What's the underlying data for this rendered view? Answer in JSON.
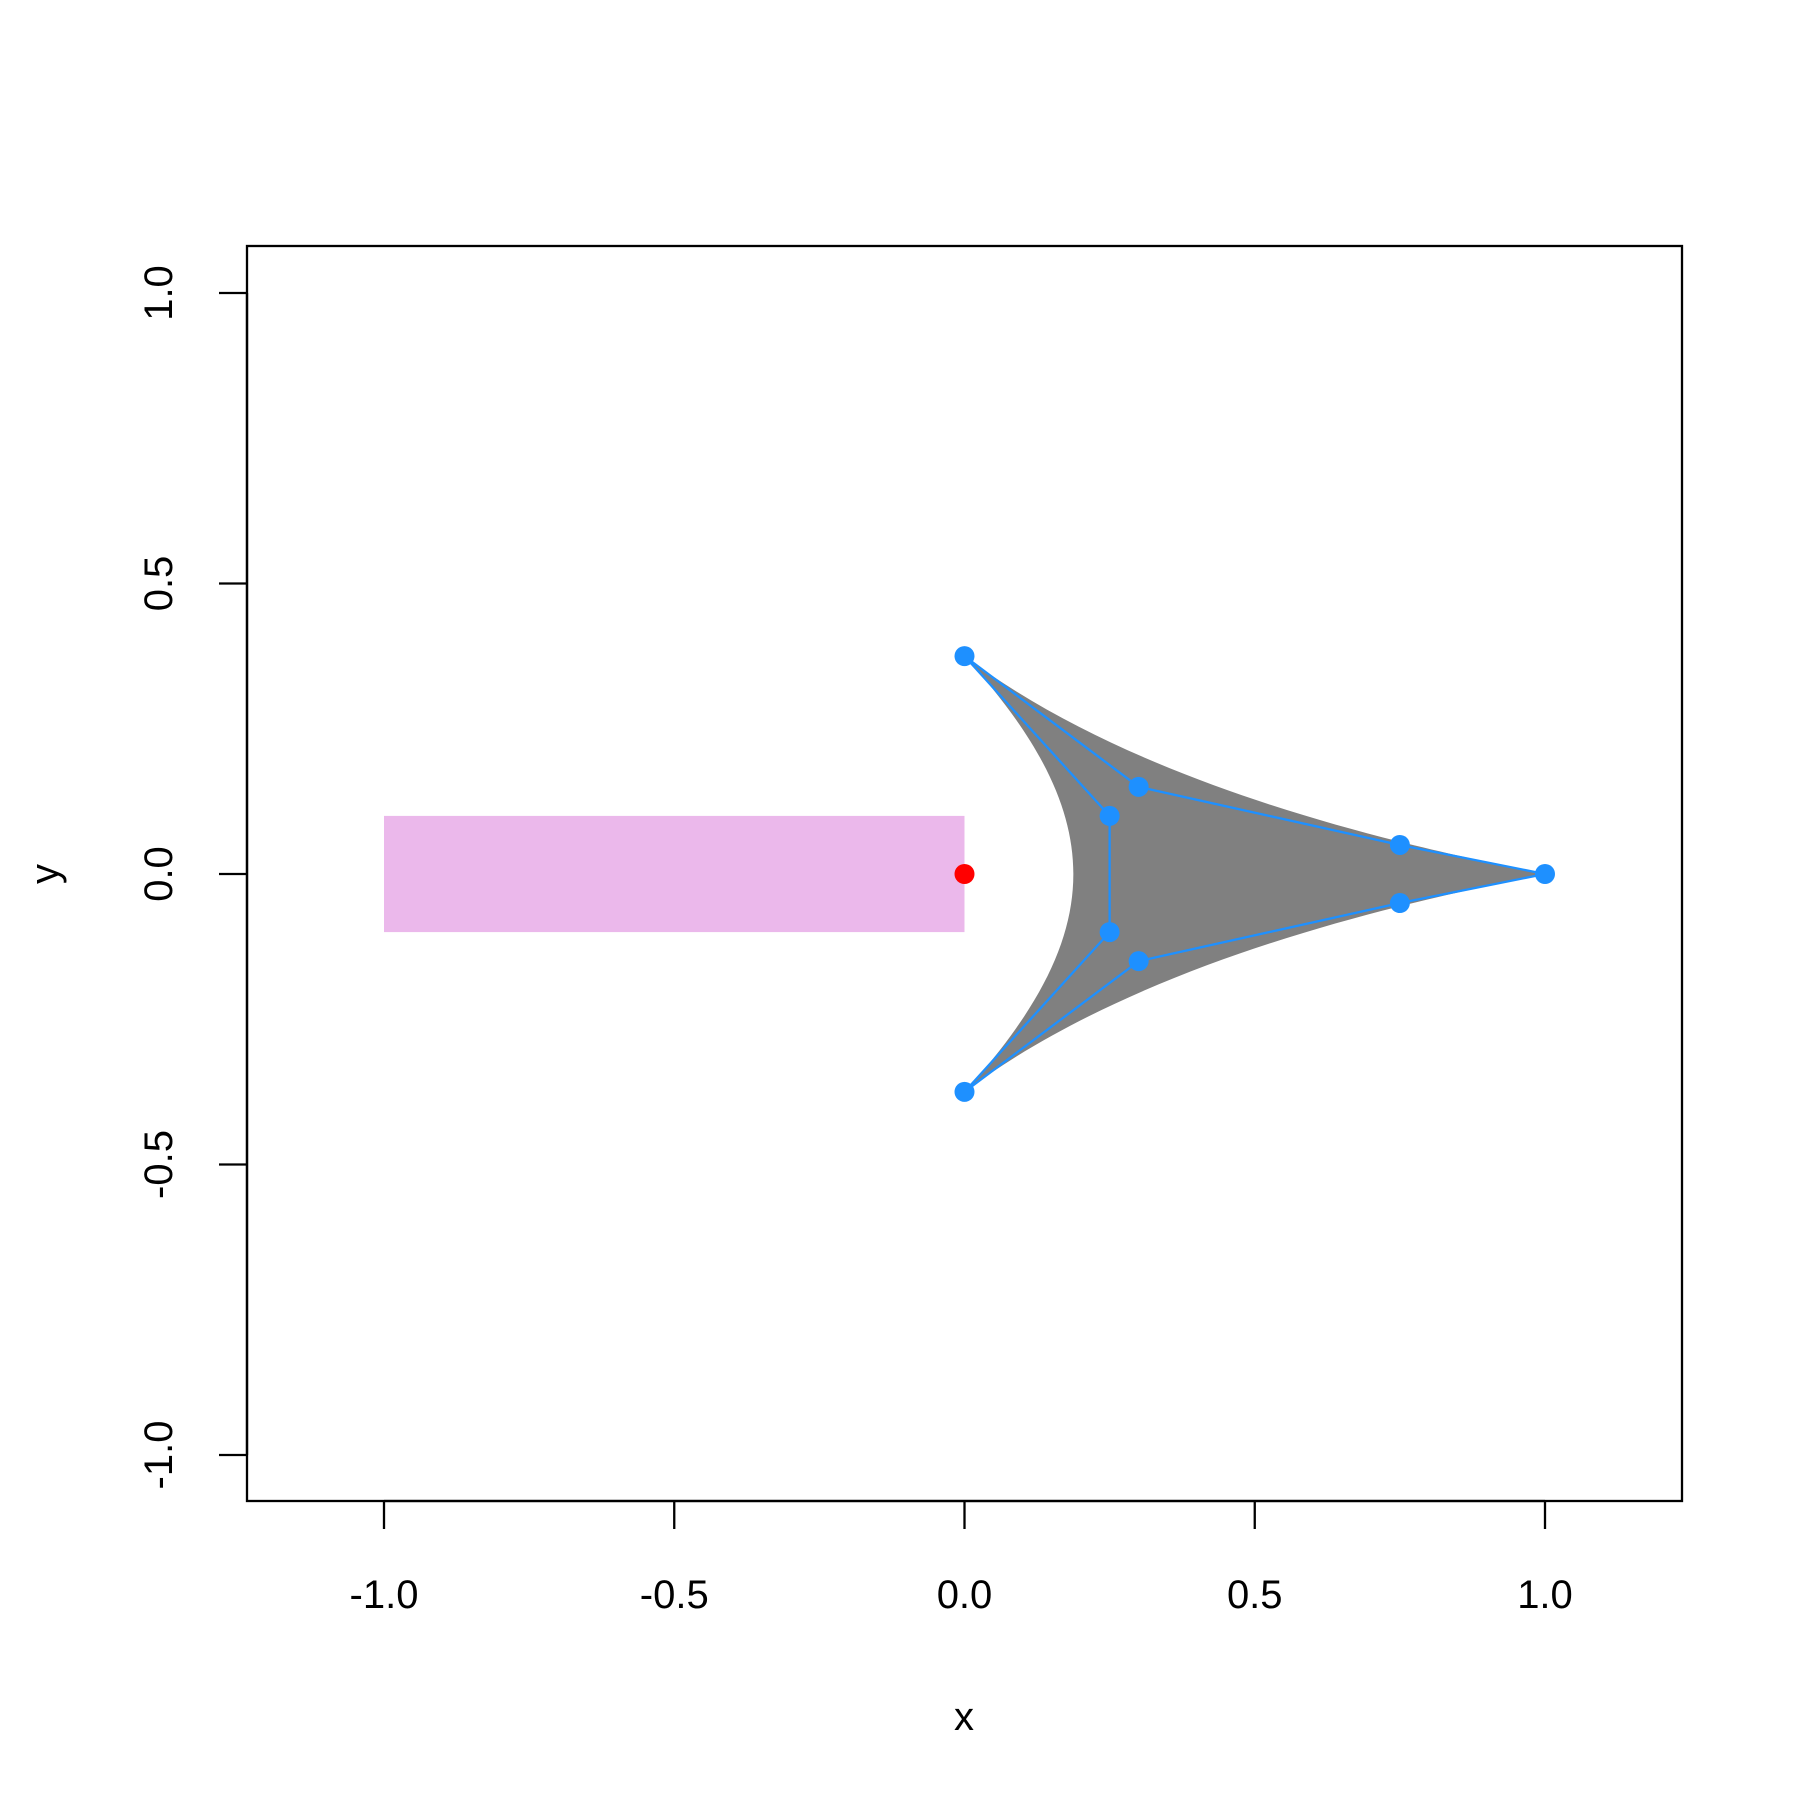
{
  "chart_data": {
    "type": "scatter",
    "title": "",
    "xlabel": "x",
    "ylabel": "y",
    "xlim": [
      -1.2,
      1.2
    ],
    "ylim": [
      -1.1,
      1.1
    ],
    "grid": false,
    "x_ticks": [
      -1.0,
      -0.5,
      0.0,
      0.5,
      1.0
    ],
    "x_tick_labels": [
      "-1.0",
      "-0.5",
      "0.0",
      "0.5",
      "1.0"
    ],
    "y_ticks": [
      -1.0,
      -0.5,
      0.0,
      0.5,
      1.0
    ],
    "y_tick_labels": [
      "-1.0",
      "-0.5",
      "0.0",
      "0.5",
      "1.0"
    ],
    "rectangle": {
      "xmin": -1,
      "xmax": 0,
      "ymin": -0.1,
      "ymax": 0.1,
      "color": "#EBB8EB"
    },
    "center_point": {
      "x": 0,
      "y": 0,
      "color": "#FF0000"
    },
    "shape_fill": "#808080",
    "control_color": "#1E90FF",
    "control_points": [
      {
        "x": 0,
        "y": 0.375
      },
      {
        "x": 0.3,
        "y": 0.15
      },
      {
        "x": 0.75,
        "y": 0.05
      },
      {
        "x": 1,
        "y": 0
      },
      {
        "x": 0.75,
        "y": -0.05
      },
      {
        "x": 0.3,
        "y": -0.15
      },
      {
        "x": 0,
        "y": -0.375
      },
      {
        "x": 0.25,
        "y": -0.1
      },
      {
        "x": 0.25,
        "y": 0.1
      }
    ]
  }
}
